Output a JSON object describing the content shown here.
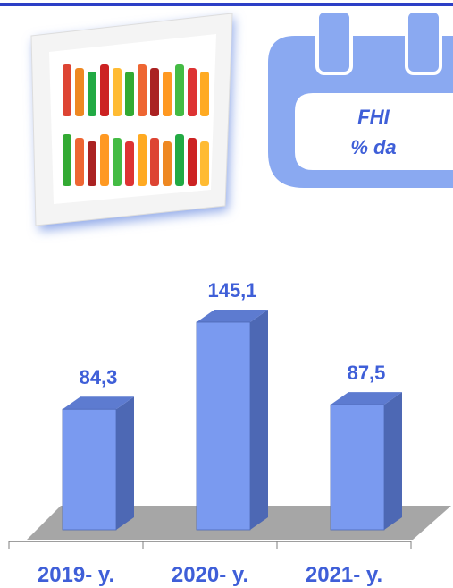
{
  "calendar": {
    "line1": "FHI",
    "line2": "% da"
  },
  "chart_data": {
    "type": "bar3d",
    "categories": [
      "2019- y.",
      "2020- y.",
      "2021- y."
    ],
    "values": [
      84.3,
      145.1,
      87.5
    ],
    "value_labels": [
      "84,3",
      "145,1",
      "87,5"
    ],
    "color": "#7a9af0"
  }
}
